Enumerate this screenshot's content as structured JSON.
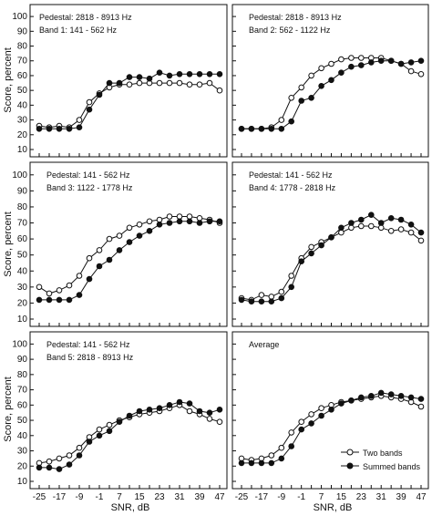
{
  "figure": {
    "ylabel": "Score, percent",
    "xlabel": "SNR, dB",
    "legend": {
      "open": "Two bands",
      "filled": "Summed bands",
      "placement": "bottom-right"
    }
  },
  "chart_data": [
    {
      "type": "line",
      "annotation": [
        "Pedestal: 2818 - 8913 Hz",
        "Band 1: 141 - 562 Hz"
      ],
      "x": [
        -25,
        -21,
        -17,
        -13,
        -9,
        -5,
        -1,
        3,
        7,
        11,
        15,
        19,
        23,
        27,
        31,
        35,
        39,
        43,
        47
      ],
      "xticks": [
        -25,
        -17,
        -9,
        -1,
        7,
        15,
        23,
        31,
        39,
        47
      ],
      "ylim": [
        10,
        100
      ],
      "yticks": [
        10,
        20,
        30,
        40,
        50,
        60,
        70,
        80,
        90,
        100
      ],
      "series": [
        {
          "name": "Two bands",
          "marker": "open",
          "values": [
            26,
            25,
            26,
            25,
            30,
            42,
            48,
            52,
            54,
            54,
            55,
            55,
            55,
            55,
            55,
            54,
            54,
            55,
            50
          ]
        },
        {
          "name": "Summed bands",
          "marker": "filled",
          "values": [
            24,
            24,
            24,
            24,
            25,
            37,
            47,
            55,
            55,
            59,
            59,
            58,
            62,
            60,
            61,
            61,
            61,
            61,
            61
          ]
        }
      ]
    },
    {
      "type": "line",
      "annotation": [
        "Pedestal: 2818 - 8913 Hz",
        "Band 2: 562 - 1122 Hz"
      ],
      "x": [
        -25,
        -21,
        -17,
        -13,
        -9,
        -5,
        -1,
        3,
        7,
        11,
        15,
        19,
        23,
        27,
        31,
        35,
        39,
        43,
        47
      ],
      "xticks": [
        -25,
        -17,
        -9,
        -1,
        7,
        15,
        23,
        31,
        39,
        47
      ],
      "ylim": [
        10,
        100
      ],
      "yticks": [
        10,
        20,
        30,
        40,
        50,
        60,
        70,
        80,
        90,
        100
      ],
      "series": [
        {
          "name": "Two bands",
          "marker": "open",
          "values": [
            24,
            24,
            24,
            25,
            30,
            45,
            52,
            60,
            65,
            68,
            71,
            72,
            72,
            72,
            72,
            70,
            68,
            63,
            61
          ]
        },
        {
          "name": "Summed bands",
          "marker": "filled",
          "values": [
            24,
            24,
            24,
            24,
            24,
            29,
            43,
            45,
            53,
            57,
            62,
            66,
            67,
            69,
            70,
            70,
            68,
            69,
            70
          ]
        }
      ]
    },
    {
      "type": "line",
      "annotation": [
        "Pedestal: 141 - 562 Hz",
        "Band 3: 1122 - 1778 Hz"
      ],
      "x": [
        -25,
        -21,
        -17,
        -13,
        -9,
        -5,
        -1,
        3,
        7,
        11,
        15,
        19,
        23,
        27,
        31,
        35,
        39,
        43,
        47
      ],
      "xticks": [
        -25,
        -17,
        -9,
        -1,
        7,
        15,
        23,
        31,
        39,
        47
      ],
      "ylim": [
        10,
        100
      ],
      "yticks": [
        10,
        20,
        30,
        40,
        50,
        60,
        70,
        80,
        90,
        100
      ],
      "series": [
        {
          "name": "Two bands",
          "marker": "open",
          "values": [
            30,
            26,
            28,
            31,
            37,
            48,
            53,
            60,
            62,
            67,
            69,
            71,
            72,
            74,
            74,
            74,
            73,
            72,
            70
          ]
        },
        {
          "name": "Summed bands",
          "marker": "filled",
          "values": [
            22,
            22,
            22,
            22,
            25,
            35,
            43,
            47,
            53,
            58,
            62,
            65,
            69,
            70,
            71,
            71,
            70,
            71,
            71
          ]
        }
      ]
    },
    {
      "type": "line",
      "annotation": [
        "Pedestal: 141 - 562 Hz",
        "Band 4: 1778 - 2818 Hz"
      ],
      "x": [
        -25,
        -21,
        -17,
        -13,
        -9,
        -5,
        -1,
        3,
        7,
        11,
        15,
        19,
        23,
        27,
        31,
        35,
        39,
        43,
        47
      ],
      "xticks": [
        -25,
        -17,
        -9,
        -1,
        7,
        15,
        23,
        31,
        39,
        47
      ],
      "ylim": [
        10,
        100
      ],
      "yticks": [
        10,
        20,
        30,
        40,
        50,
        60,
        70,
        80,
        90,
        100
      ],
      "series": [
        {
          "name": "Two bands",
          "marker": "open",
          "values": [
            23,
            22,
            25,
            24,
            27,
            37,
            48,
            55,
            58,
            61,
            64,
            67,
            68,
            68,
            67,
            65,
            66,
            64,
            59
          ]
        },
        {
          "name": "Summed bands",
          "marker": "filled",
          "values": [
            22,
            21,
            21,
            21,
            23,
            30,
            46,
            51,
            56,
            61,
            67,
            70,
            72,
            75,
            70,
            73,
            72,
            69,
            64
          ]
        }
      ]
    },
    {
      "type": "line",
      "annotation": [
        "Pedestal: 141 - 562 Hz",
        "Band 5: 2818 - 8913 Hz"
      ],
      "x": [
        -25,
        -21,
        -17,
        -13,
        -9,
        -5,
        -1,
        3,
        7,
        11,
        15,
        19,
        23,
        27,
        31,
        35,
        39,
        43,
        47
      ],
      "xticks": [
        -25,
        -17,
        -9,
        -1,
        7,
        15,
        23,
        31,
        39,
        47
      ],
      "ylim": [
        10,
        100
      ],
      "yticks": [
        10,
        20,
        30,
        40,
        50,
        60,
        70,
        80,
        90,
        100
      ],
      "series": [
        {
          "name": "Two bands",
          "marker": "open",
          "values": [
            22,
            23,
            25,
            27,
            32,
            39,
            44,
            47,
            50,
            52,
            54,
            55,
            56,
            58,
            60,
            56,
            54,
            51,
            49
          ]
        },
        {
          "name": "Summed bands",
          "marker": "filled",
          "values": [
            19,
            19,
            18,
            21,
            27,
            36,
            40,
            43,
            49,
            53,
            56,
            57,
            58,
            60,
            62,
            61,
            56,
            55,
            57
          ]
        }
      ]
    },
    {
      "type": "line",
      "annotation": [
        "Average"
      ],
      "x": [
        -25,
        -21,
        -17,
        -13,
        -9,
        -5,
        -1,
        3,
        7,
        11,
        15,
        19,
        23,
        27,
        31,
        35,
        39,
        43,
        47
      ],
      "xticks": [
        -25,
        -17,
        -9,
        -1,
        7,
        15,
        23,
        31,
        39,
        47
      ],
      "ylim": [
        10,
        100
      ],
      "yticks": [
        10,
        20,
        30,
        40,
        50,
        60,
        70,
        80,
        90,
        100
      ],
      "series": [
        {
          "name": "Two bands",
          "marker": "open",
          "values": [
            25,
            24,
            25,
            27,
            32,
            42,
            49,
            54,
            58,
            60,
            62,
            63,
            64,
            65,
            66,
            65,
            64,
            62,
            59
          ]
        },
        {
          "name": "Summed bands",
          "marker": "filled",
          "values": [
            22,
            22,
            22,
            22,
            25,
            33,
            44,
            48,
            53,
            57,
            61,
            63,
            65,
            66,
            68,
            67,
            66,
            65,
            64
          ]
        }
      ]
    }
  ]
}
